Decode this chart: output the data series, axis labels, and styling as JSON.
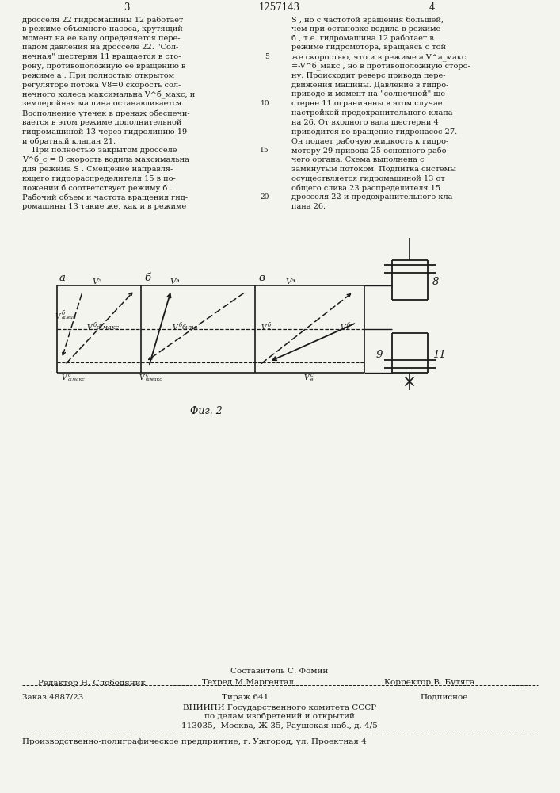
{
  "page_number_left": "3",
  "patent_number": "1257143",
  "page_number_right": "4",
  "text_col1": [
    "дросселя 22 гидромашины 12 работает",
    "в режиме объемного насоса, крутящий",
    "момент на ее валу определяется пере-",
    "падом давления на дросселе 22. \"Сол-",
    "нечная\" шестерня 11 вращается в сто-",
    "рону, противоположную ее вращению в",
    "режиме а . При полностью открытом",
    "регуляторе потока V8=0 скорость сол-",
    "нечного колеса максимальна V^б_макс, и",
    "землеройная машина останавливается.",
    "Восполнение утечек в дренаж обеспечи-",
    "вается в этом режиме дополнительной",
    "гидромашиной 13 через гидролинию 19",
    "и обратный клапан 21.",
    "    При полностью закрытом дросселе",
    "V^б_с = 0 скорость водила максимальна",
    "для режима S . Смещение направля-",
    "ющего гидрораспределителя 15 в по-",
    "ложении б соответствует режиму б .",
    "Рабочий объем и частота вращения гид-",
    "ромашины 13 такие же, как и в режиме"
  ],
  "text_col2": [
    "S , но с частотой вращения большей,",
    "чем при остановке водила в режиме",
    "б , т.е. гидромашина 12 работает в",
    "режиме гидромотора, вращаясь с той",
    "же скоростью, что и в режиме а V^а_макс",
    "=-V^б_макс , но в противоположную сторо-",
    "ну. Происходит реверс привода пере-",
    "движения машины. Давление в гидро-",
    "приводе и момент на \"солнечной\" ше-",
    "стерне 11 ограничены в этом случае",
    "настройкой предохранительного клапа-",
    "на 26. От входного вала шестерни 4",
    "приводится во вращение гидронасос 27.",
    "Он подает рабочую жидкость к гидро-",
    "мотору 29 привода 25 основного рабо-",
    "чего органа. Схема выполнена с",
    "замкнутым потоком. Подпитка системы",
    "осуществляется гидромашиной 13 от",
    "общего слива 23 распределителя 15",
    "дросселя 22 и предохранительного кла-",
    "пана 26."
  ],
  "fig_caption": "Фиг. 2",
  "footer_composer": "Составитель С. Фомин",
  "footer_editor": "Редактор Н. Слободяник",
  "footer_techred": "Техред М.Маргентал",
  "footer_corrector": "Корректор В. Бутяга",
  "footer_order": "Заказ 4887/23",
  "footer_tirazh": "Тираж 641",
  "footer_podpisnoe": "Подписное",
  "footer_vnipi": "ВНИИПИ Государственного комитета СССР",
  "footer_vnipi2": "по делам изобретений и открытий",
  "footer_address": "113035,  Москва, Ж-35, Раушская наб., д. 4/5",
  "footer_plant": "Производственно-полиграфическое предприятие, г. Ужгород, ул. Проектная 4",
  "bg_color": "#f4f4ef"
}
